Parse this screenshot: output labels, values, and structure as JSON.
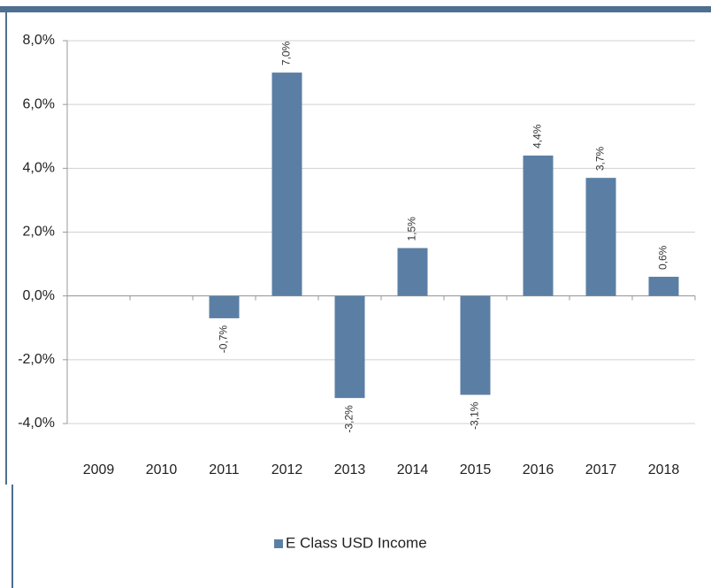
{
  "chart_data": {
    "type": "bar",
    "categories": [
      "2009",
      "2010",
      "2011",
      "2012",
      "2013",
      "2014",
      "2015",
      "2016",
      "2017",
      "2018"
    ],
    "series": [
      {
        "name": "E Class USD Income",
        "color": "#5b7fa4",
        "values": [
          null,
          null,
          -0.7,
          7.0,
          -3.2,
          1.5,
          -3.1,
          4.4,
          3.7,
          0.6
        ],
        "value_labels": [
          null,
          null,
          "-0,7%",
          "7,0%",
          "-3,2%",
          "1,5%",
          "-3,1%",
          "4,4%",
          "3,7%",
          "0,6%"
        ]
      }
    ],
    "ylim": [
      -4,
      8
    ],
    "yticks": [
      {
        "value": -4,
        "label": "-4,0%"
      },
      {
        "value": -2,
        "label": "-2,0%"
      },
      {
        "value": 0,
        "label": "0,0%"
      },
      {
        "value": 2,
        "label": "2,0%"
      },
      {
        "value": 4,
        "label": "4,0%"
      },
      {
        "value": 6,
        "label": "6,0%"
      },
      {
        "value": 8,
        "label": "8,0%"
      }
    ],
    "grid": true,
    "legend": "bottom"
  }
}
